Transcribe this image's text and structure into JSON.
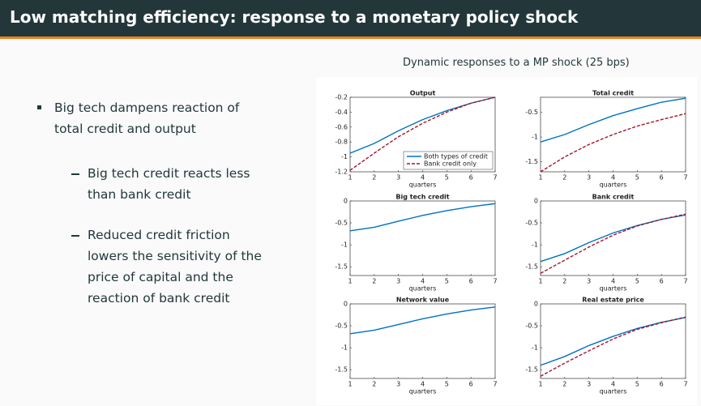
{
  "slide": {
    "title": "Low matching efficiency: response to a monetary policy shock",
    "caption": "Dynamic responses to a MP shock (25 bps)",
    "bullet": "Big tech dampens reaction of total credit and output",
    "sub_bullets": [
      "Big tech credit reacts less than bank credit",
      "Reduced credit friction lowers the sensitivity of the price of capital and the reaction of bank credit"
    ]
  },
  "chart_data": [
    {
      "type": "line",
      "title": "Output",
      "xlabel": "quarters",
      "x": [
        1,
        2,
        3,
        4,
        5,
        6,
        7
      ],
      "xlim": [
        1,
        7
      ],
      "xticks": [
        1,
        2,
        3,
        4,
        5,
        6,
        7
      ],
      "ylim": [
        -1.2,
        -0.2
      ],
      "yticks": [
        -1.2,
        -1,
        -0.8,
        -0.6,
        -0.4,
        -0.2
      ],
      "legend": "lower right",
      "series": [
        {
          "name": "Both types of credit",
          "color": "#0072bd",
          "linestyle": "solid",
          "values": [
            -0.95,
            -0.82,
            -0.65,
            -0.5,
            -0.38,
            -0.28,
            -0.2
          ]
        },
        {
          "name": "Bank credit only",
          "color": "#a2142f",
          "linestyle": "dashed",
          "values": [
            -1.18,
            -0.95,
            -0.73,
            -0.55,
            -0.4,
            -0.28,
            -0.2
          ]
        }
      ]
    },
    {
      "type": "line",
      "title": "Total credit",
      "xlabel": "quarters",
      "x": [
        1,
        2,
        3,
        4,
        5,
        6,
        7
      ],
      "xlim": [
        1,
        7
      ],
      "xticks": [
        1,
        2,
        3,
        4,
        5,
        6,
        7
      ],
      "ylim": [
        -1.7,
        -0.2
      ],
      "yticks": [
        -1.5,
        -1,
        -0.5
      ],
      "series": [
        {
          "color": "#0072bd",
          "linestyle": "solid",
          "values": [
            -1.1,
            -0.95,
            -0.75,
            -0.57,
            -0.43,
            -0.3,
            -0.22
          ]
        },
        {
          "color": "#a2142f",
          "linestyle": "dashed",
          "values": [
            -1.7,
            -1.4,
            -1.15,
            -0.95,
            -0.78,
            -0.65,
            -0.53
          ]
        }
      ]
    },
    {
      "type": "line",
      "title": "Big tech credit",
      "xlabel": "quarters",
      "x": [
        1,
        2,
        3,
        4,
        5,
        6,
        7
      ],
      "xlim": [
        1,
        7
      ],
      "xticks": [
        1,
        2,
        3,
        4,
        5,
        6,
        7
      ],
      "ylim": [
        -1.7,
        0
      ],
      "yticks": [
        -1.5,
        -1,
        -0.5,
        0
      ],
      "series": [
        {
          "color": "#0072bd",
          "linestyle": "solid",
          "values": [
            -0.68,
            -0.6,
            -0.46,
            -0.33,
            -0.22,
            -0.13,
            -0.06
          ]
        }
      ]
    },
    {
      "type": "line",
      "title": "Bank credit",
      "xlabel": "quarters",
      "x": [
        1,
        2,
        3,
        4,
        5,
        6,
        7
      ],
      "xlim": [
        1,
        7
      ],
      "xticks": [
        1,
        2,
        3,
        4,
        5,
        6,
        7
      ],
      "ylim": [
        -1.7,
        0
      ],
      "yticks": [
        -1.5,
        -1,
        -0.5,
        0
      ],
      "series": [
        {
          "color": "#0072bd",
          "linestyle": "solid",
          "values": [
            -1.38,
            -1.2,
            -0.95,
            -0.73,
            -0.56,
            -0.42,
            -0.32
          ]
        },
        {
          "color": "#a2142f",
          "linestyle": "dashed",
          "values": [
            -1.65,
            -1.35,
            -1.05,
            -0.78,
            -0.57,
            -0.42,
            -0.3
          ]
        }
      ]
    },
    {
      "type": "line",
      "title": "Network value",
      "xlabel": "quarters",
      "x": [
        1,
        2,
        3,
        4,
        5,
        6,
        7
      ],
      "xlim": [
        1,
        7
      ],
      "xticks": [
        1,
        2,
        3,
        4,
        5,
        6,
        7
      ],
      "ylim": [
        -1.7,
        0
      ],
      "yticks": [
        -1.5,
        -1,
        -0.5,
        0
      ],
      "series": [
        {
          "color": "#0072bd",
          "linestyle": "solid",
          "values": [
            -0.68,
            -0.6,
            -0.47,
            -0.34,
            -0.23,
            -0.14,
            -0.07
          ]
        }
      ]
    },
    {
      "type": "line",
      "title": "Real estate price",
      "xlabel": "quarters",
      "x": [
        1,
        2,
        3,
        4,
        5,
        6,
        7
      ],
      "xlim": [
        1,
        7
      ],
      "xticks": [
        1,
        2,
        3,
        4,
        5,
        6,
        7
      ],
      "ylim": [
        -1.7,
        0
      ],
      "yticks": [
        -1.5,
        -1,
        -0.5,
        0
      ],
      "series": [
        {
          "color": "#0072bd",
          "linestyle": "solid",
          "values": [
            -1.4,
            -1.2,
            -0.95,
            -0.74,
            -0.56,
            -0.42,
            -0.31
          ]
        },
        {
          "color": "#a2142f",
          "linestyle": "dashed",
          "values": [
            -1.65,
            -1.35,
            -1.07,
            -0.8,
            -0.58,
            -0.43,
            -0.3
          ]
        }
      ]
    }
  ]
}
